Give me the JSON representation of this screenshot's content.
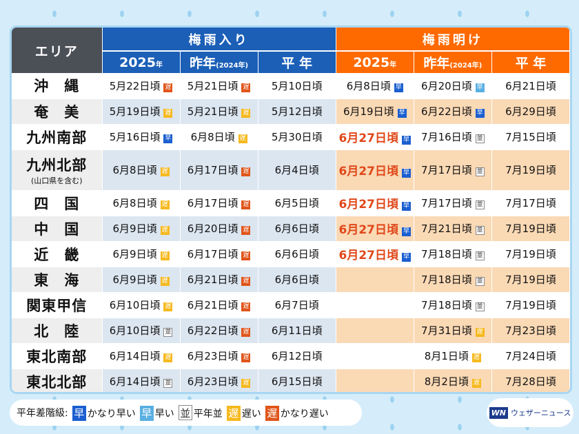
{
  "header": {
    "area": "エリア",
    "in_group": "梅雨入り",
    "out_group": "梅雨明け",
    "col_2025": "2025",
    "year_suffix": "年",
    "col_last": "昨年",
    "col_last_note": "(2024年)",
    "col_normal": "平 年"
  },
  "levels": {
    "kh": {
      "glyph": "早",
      "label": "かなり早い",
      "color": "#1b5fd0"
    },
    "h": {
      "glyph": "早",
      "label": "早い",
      "color": "#5ab0e2"
    },
    "n": {
      "glyph": "並",
      "label": "平年並",
      "color": "#ffffff"
    },
    "o": {
      "glyph": "遅",
      "label": "遅い",
      "color": "#f6b91f"
    },
    "ko": {
      "glyph": "遅",
      "label": "かなり遅い",
      "color": "#e0551a"
    }
  },
  "legend": {
    "title": "平年差階級:"
  },
  "logo": {
    "mark": "WN",
    "text": "ウェザーニュース"
  },
  "rows": [
    {
      "area": "沖　縄",
      "in": [
        "5月22日頃",
        "ko",
        "5月21日頃",
        "ko",
        "5月10日頃"
      ],
      "out": [
        "6月8日頃",
        "kh",
        "6月20日頃",
        "h",
        "6月21日頃"
      ]
    },
    {
      "area": "奄　美",
      "in": [
        "5月19日頃",
        "o",
        "5月21日頃",
        "o",
        "5月12日頃"
      ],
      "out": [
        "6月19日頃",
        "kh",
        "6月22日頃",
        "kh",
        "6月29日頃"
      ]
    },
    {
      "area": "九州南部",
      "in": [
        "5月16日頃",
        "kh",
        "6月8日頃",
        "o",
        "5月30日頃"
      ],
      "out": [
        "6月27日頃",
        "kh",
        "7月16日頃",
        "n",
        "7月15日頃"
      ],
      "highlight": true
    },
    {
      "area": "九州北部",
      "note": "(山口県を含む)",
      "in": [
        "6月8日頃",
        "o",
        "6月17日頃",
        "ko",
        "6月4日頃"
      ],
      "out": [
        "6月27日頃",
        "kh",
        "7月17日頃",
        "n",
        "7月19日頃"
      ],
      "highlight": true
    },
    {
      "area": "四　国",
      "in": [
        "6月8日頃",
        "o",
        "6月17日頃",
        "ko",
        "6月5日頃"
      ],
      "out": [
        "6月27日頃",
        "kh",
        "7月17日頃",
        "n",
        "7月17日頃"
      ],
      "highlight": true
    },
    {
      "area": "中　国",
      "in": [
        "6月9日頃",
        "o",
        "6月20日頃",
        "ko",
        "6月6日頃"
      ],
      "out": [
        "6月27日頃",
        "kh",
        "7月21日頃",
        "n",
        "7月19日頃"
      ],
      "highlight": true
    },
    {
      "area": "近　畿",
      "in": [
        "6月9日頃",
        "o",
        "6月17日頃",
        "ko",
        "6月6日頃"
      ],
      "out": [
        "6月27日頃",
        "kh",
        "7月18日頃",
        "n",
        "7月19日頃"
      ],
      "highlight": true
    },
    {
      "area": "東　海",
      "in": [
        "6月9日頃",
        "o",
        "6月21日頃",
        "ko",
        "6月6日頃"
      ],
      "out": [
        "",
        "",
        "7月18日頃",
        "n",
        "7月19日頃"
      ]
    },
    {
      "area": "関東甲信",
      "in": [
        "6月10日頃",
        "o",
        "6月21日頃",
        "ko",
        "6月7日頃"
      ],
      "out": [
        "",
        "",
        "7月18日頃",
        "n",
        "7月19日頃"
      ]
    },
    {
      "area": "北　陸",
      "in": [
        "6月10日頃",
        "n",
        "6月22日頃",
        "ko",
        "6月11日頃"
      ],
      "out": [
        "",
        "",
        "7月31日頃",
        "o",
        "7月23日頃"
      ]
    },
    {
      "area": "東北南部",
      "in": [
        "6月14日頃",
        "o",
        "6月23日頃",
        "ko",
        "6月12日頃"
      ],
      "out": [
        "",
        "",
        "8月1日頃",
        "o",
        "7月24日頃"
      ]
    },
    {
      "area": "東北北部",
      "in": [
        "6月14日頃",
        "n",
        "6月23日頃",
        "o",
        "6月15日頃"
      ],
      "out": [
        "",
        "",
        "8月2日頃",
        "o",
        "7月28日頃"
      ]
    }
  ]
}
